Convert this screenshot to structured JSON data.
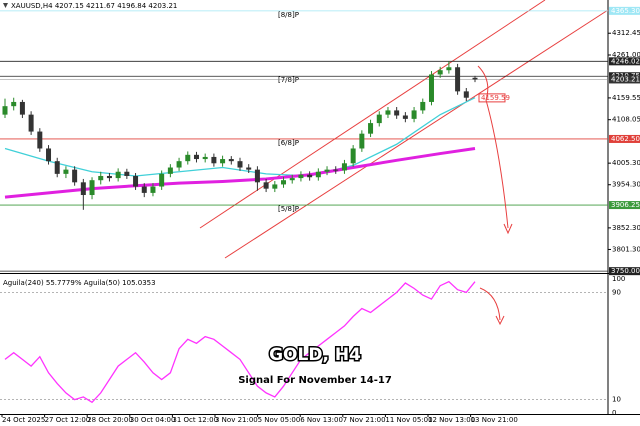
{
  "chart_data": {
    "type": "candlestick",
    "symbol": "XAUUSD,H4",
    "header": {
      "open": 4207.15,
      "high": 4211.67,
      "low": 4196.84,
      "close": 4203.21
    },
    "title": "GOLD, H4",
    "subtitle": "Signal For November 14-17",
    "ylim": [
      3748,
      4391
    ],
    "yticks": [
      {
        "value": 4312.45,
        "label": "4312.45"
      },
      {
        "value": 4261,
        "label": "4261.00"
      },
      {
        "value": 4159.55,
        "label": "4159.55"
      },
      {
        "value": 4108.05,
        "label": "4108.05"
      },
      {
        "value": 4005.3,
        "label": "4005.30"
      },
      {
        "value": 3954.3,
        "label": "3954.30"
      },
      {
        "value": 3852.3,
        "label": "3852.30"
      },
      {
        "value": 3801.3,
        "label": "3801.30"
      }
    ],
    "levels": [
      {
        "name": "[8/8]P",
        "value": 4365.3,
        "price_label": "4365.30",
        "color": "#9fe7f5"
      },
      {
        "value": 4246.02,
        "price_label": "4246.02",
        "color": "#222222"
      },
      {
        "name": "[7/8]P",
        "value": 4210.75,
        "price_label": "4210.75",
        "color": "#222222"
      },
      {
        "name": "[6/8]P",
        "value": 4062.5,
        "price_label": "4062.50",
        "color": "#e0403a"
      },
      {
        "name": "[5/8]P",
        "value": 3906.25,
        "price_label": "3906.25",
        "color": "#3c9a3c"
      },
      {
        "value": 3750,
        "price_label": "3750.00",
        "color": "#222222"
      }
    ],
    "current_price": {
      "value": 4203.21,
      "label": "4203.21"
    },
    "target": {
      "value": 4159.59,
      "label": "4159.59"
    },
    "candles": [
      [
        4120,
        4158,
        4112,
        4140
      ],
      [
        4140,
        4160,
        4130,
        4150
      ],
      [
        4150,
        4155,
        4112,
        4120
      ],
      [
        4120,
        4128,
        4072,
        4080
      ],
      [
        4080,
        4088,
        4032,
        4040
      ],
      [
        4040,
        4048,
        4002,
        4010
      ],
      [
        4010,
        4018,
        3972,
        3980
      ],
      [
        3980,
        3998,
        3970,
        3990
      ],
      [
        3990,
        3998,
        3952,
        3960
      ],
      [
        3960,
        3968,
        3895,
        3930
      ],
      [
        3930,
        3972,
        3920,
        3965
      ],
      [
        3965,
        3985,
        3955,
        3975
      ],
      [
        3975,
        3982,
        3962,
        3970
      ],
      [
        3970,
        3993,
        3962,
        3985
      ],
      [
        3985,
        3992,
        3968,
        3975
      ],
      [
        3975,
        3982,
        3942,
        3950
      ],
      [
        3950,
        3958,
        3925,
        3935
      ],
      [
        3935,
        3958,
        3927,
        3950
      ],
      [
        3950,
        3988,
        3942,
        3980
      ],
      [
        3980,
        4003,
        3972,
        3995
      ],
      [
        3995,
        4018,
        3987,
        4010
      ],
      [
        4010,
        4033,
        4002,
        4025
      ],
      [
        4025,
        4032,
        4007,
        4015
      ],
      [
        4015,
        4028,
        4007,
        4020
      ],
      [
        4020,
        4028,
        3997,
        4005
      ],
      [
        4005,
        4023,
        3997,
        4015
      ],
      [
        4015,
        4022,
        4002,
        4010
      ],
      [
        4010,
        4018,
        3987,
        3995
      ],
      [
        3995,
        4003,
        3982,
        3990
      ],
      [
        3990,
        3998,
        3940,
        3960
      ],
      [
        3960,
        3968,
        3937,
        3945
      ],
      [
        3945,
        3963,
        3937,
        3955
      ],
      [
        3955,
        3973,
        3947,
        3965
      ],
      [
        3965,
        3978,
        3957,
        3970
      ],
      [
        3970,
        3986,
        3962,
        3978
      ],
      [
        3978,
        3986,
        3964,
        3972
      ],
      [
        3972,
        3993,
        3964,
        3985
      ],
      [
        3985,
        3998,
        3977,
        3990
      ],
      [
        3990,
        3998,
        3980,
        3988
      ],
      [
        3988,
        4013,
        3980,
        4005
      ],
      [
        4005,
        4048,
        3997,
        4040
      ],
      [
        4040,
        4083,
        4032,
        4075
      ],
      [
        4075,
        4108,
        4067,
        4100
      ],
      [
        4100,
        4128,
        4092,
        4120
      ],
      [
        4120,
        4138,
        4112,
        4130
      ],
      [
        4130,
        4138,
        4110,
        4118
      ],
      [
        4118,
        4126,
        4102,
        4110
      ],
      [
        4110,
        4138,
        4102,
        4130
      ],
      [
        4130,
        4158,
        4122,
        4150
      ],
      [
        4150,
        4223,
        4142,
        4215
      ],
      [
        4215,
        4233,
        4207,
        4225
      ],
      [
        4225,
        4246.02,
        4217,
        4232
      ],
      [
        4232,
        4240,
        4167,
        4175
      ],
      [
        4175,
        4183,
        4152,
        4160
      ]
    ],
    "up_color": "#2a8a2a",
    "down_color": "#333333",
    "moving_averages": [
      {
        "color": "#40d0d8",
        "width": 1.3,
        "x": [
          0,
          5,
          10,
          15,
          20,
          25,
          30,
          35,
          40,
          45,
          50,
          54
        ],
        "values": [
          4040,
          4010,
          3985,
          3975,
          3985,
          3995,
          3980,
          3975,
          4000,
          4050,
          4120,
          4160
        ]
      },
      {
        "color": "#e020e0",
        "width": 3,
        "x": [
          0,
          5,
          10,
          15,
          20,
          25,
          30,
          35,
          40,
          45,
          50,
          54
        ],
        "values": [
          3925,
          3935,
          3945,
          3952,
          3958,
          3962,
          3968,
          3978,
          3995,
          4012,
          4028,
          4040
        ]
      }
    ],
    "x_labels": [
      "24 Oct 2025",
      "27 Oct 12:00",
      "28 Oct 20:00",
      "30 Oct 04:00",
      "31 Oct 12:00",
      "3 Nov 21:00",
      "5 Nov 05:00",
      "6 Nov 13:00",
      "7 Nov 21:00",
      "11 Nov 05:00",
      "12 Nov 13:00",
      "13 Nov 21:00"
    ],
    "indicator": {
      "label": "Aguila(240) 55.7779% Aguila(50) 105.0353",
      "color": "#ff33ff",
      "ylim": [
        0,
        100
      ],
      "yticks": [
        100,
        90,
        10,
        0
      ],
      "levels": [
        90,
        10
      ],
      "values": [
        40,
        45,
        40,
        35,
        42,
        30,
        22,
        15,
        10,
        12,
        8,
        15,
        25,
        35,
        40,
        45,
        38,
        30,
        25,
        30,
        48,
        55,
        52,
        57,
        55,
        50,
        45,
        40,
        30,
        20,
        15,
        12,
        20,
        30,
        40,
        45,
        50,
        55,
        60,
        65,
        72,
        78,
        75,
        80,
        85,
        90,
        97,
        93,
        88,
        85,
        95,
        98,
        92,
        90,
        98
      ]
    }
  }
}
